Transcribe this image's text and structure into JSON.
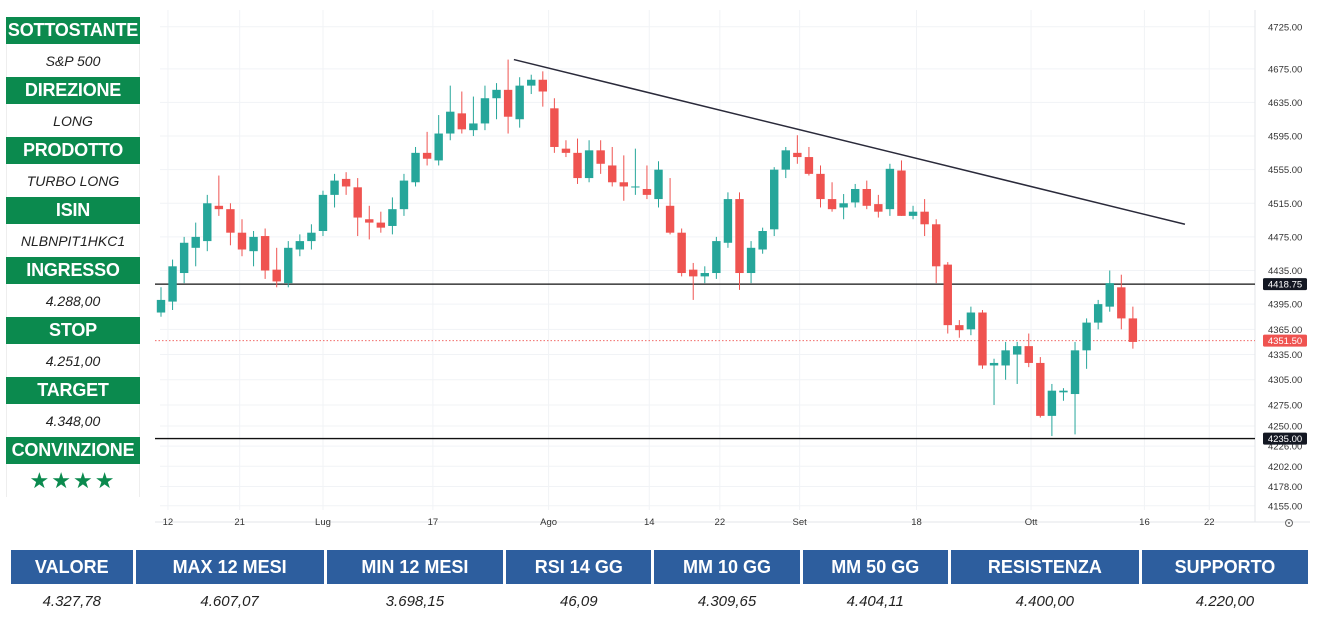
{
  "sidebar": {
    "rows": [
      {
        "label": "SOTTOSTANTE",
        "value": "S&P 500"
      },
      {
        "label": "DIREZIONE",
        "value": "LONG"
      },
      {
        "label": "PRODOTTO",
        "value": "TURBO LONG"
      },
      {
        "label": "ISIN",
        "value": "NLBNPIT1HKC1"
      },
      {
        "label": "INGRESSO",
        "value": "4.288,00"
      },
      {
        "label": "STOP",
        "value": "4.251,00"
      },
      {
        "label": "TARGET",
        "value": "4.348,00"
      }
    ],
    "conviction_label": "CONVINZIONE",
    "conviction_stars": "★★★★"
  },
  "table": {
    "headers": [
      "VALORE",
      "MAX 12 MESI",
      "MIN 12 MESI",
      "RSI 14 GG",
      "MM 10 GG",
      "MM 50 GG",
      "RESISTENZA",
      "SUPPORTO"
    ],
    "values": [
      "4.327,78",
      "4.607,07",
      "3.698,15",
      "46,09",
      "4.309,65",
      "4.404,11",
      "4.400,00",
      "4.220,00"
    ]
  },
  "colors": {
    "up": "#26a69a",
    "down": "#ef5350",
    "header_green": "#0b8a4e",
    "header_blue": "#2d5e9e"
  },
  "chart_data": {
    "type": "candlestick",
    "y_ticks": [
      "4725.00",
      "4675.00",
      "4635.00",
      "4595.00",
      "4555.00",
      "4515.00",
      "4475.00",
      "4435.00",
      "4395.00",
      "4365.00",
      "4335.00",
      "4305.00",
      "4275.00",
      "4250.00",
      "4226.00",
      "4202.00",
      "4178.00",
      "4155.00"
    ],
    "x_ticks": [
      {
        "label": "12",
        "bar": 0.6
      },
      {
        "label": "21",
        "bar": 6.8
      },
      {
        "label": "Lug",
        "bar": 14
      },
      {
        "label": "17",
        "bar": 23.5
      },
      {
        "label": "Ago",
        "bar": 33.5
      },
      {
        "label": "14",
        "bar": 42.2
      },
      {
        "label": "22",
        "bar": 48.3
      },
      {
        "label": "Set",
        "bar": 55.2
      },
      {
        "label": "18",
        "bar": 65.3
      },
      {
        "label": "Ott",
        "bar": 75.2
      },
      {
        "label": "16",
        "bar": 85
      },
      {
        "label": "22",
        "bar": 90.6
      }
    ],
    "ylim": [
      4150,
      4745
    ],
    "levels": [
      {
        "value": 4418.75,
        "label": "4418.75",
        "style": "black"
      },
      {
        "value": 4351.5,
        "label": "4351.50",
        "style": "red"
      },
      {
        "value": 4235.0,
        "label": "4235.00",
        "style": "black"
      }
    ],
    "trendline": {
      "from": {
        "bar": 30.5,
        "price": 4686
      },
      "to": {
        "bar": 88.5,
        "price": 4490
      }
    },
    "candles": [
      [
        4385,
        4415,
        4380,
        4400
      ],
      [
        4398,
        4448,
        4388,
        4440
      ],
      [
        4432,
        4475,
        4420,
        4468
      ],
      [
        4462,
        4492,
        4440,
        4475
      ],
      [
        4470,
        4525,
        4458,
        4515
      ],
      [
        4512,
        4548,
        4500,
        4508
      ],
      [
        4508,
        4515,
        4465,
        4480
      ],
      [
        4480,
        4496,
        4452,
        4460
      ],
      [
        4458,
        4482,
        4440,
        4475
      ],
      [
        4476,
        4485,
        4425,
        4435
      ],
      [
        4436,
        4462,
        4415,
        4422
      ],
      [
        4420,
        4470,
        4415,
        4462
      ],
      [
        4460,
        4478,
        4452,
        4470
      ],
      [
        4470,
        4490,
        4460,
        4480
      ],
      [
        4482,
        4530,
        4476,
        4525
      ],
      [
        4525,
        4550,
        4510,
        4542
      ],
      [
        4544,
        4552,
        4525,
        4535
      ],
      [
        4534,
        4545,
        4476,
        4498
      ],
      [
        4496,
        4512,
        4472,
        4492
      ],
      [
        4492,
        4505,
        4480,
        4486
      ],
      [
        4488,
        4522,
        4478,
        4508
      ],
      [
        4508,
        4550,
        4500,
        4542
      ],
      [
        4540,
        4582,
        4535,
        4575
      ],
      [
        4575,
        4600,
        4560,
        4568
      ],
      [
        4566,
        4620,
        4560,
        4598
      ],
      [
        4598,
        4655,
        4590,
        4624
      ],
      [
        4622,
        4648,
        4598,
        4603
      ],
      [
        4602,
        4642,
        4595,
        4610
      ],
      [
        4610,
        4655,
        4602,
        4640
      ],
      [
        4640,
        4658,
        4615,
        4650
      ],
      [
        4650,
        4686,
        4598,
        4618
      ],
      [
        4615,
        4665,
        4605,
        4655
      ],
      [
        4655,
        4668,
        4645,
        4662
      ],
      [
        4662,
        4672,
        4630,
        4648
      ],
      [
        4628,
        4640,
        4575,
        4582
      ],
      [
        4580,
        4590,
        4570,
        4575
      ],
      [
        4575,
        4592,
        4538,
        4545
      ],
      [
        4545,
        4590,
        4540,
        4578
      ],
      [
        4578,
        4590,
        4550,
        4562
      ],
      [
        4560,
        4582,
        4535,
        4540
      ],
      [
        4540,
        4572,
        4518,
        4535
      ],
      [
        4535,
        4580,
        4525,
        4535
      ],
      [
        4532,
        4560,
        4520,
        4525
      ],
      [
        4520,
        4565,
        4510,
        4555
      ],
      [
        4512,
        4545,
        4478,
        4480
      ],
      [
        4480,
        4485,
        4428,
        4432
      ],
      [
        4436,
        4444,
        4400,
        4428
      ],
      [
        4428,
        4440,
        4420,
        4432
      ],
      [
        4432,
        4475,
        4425,
        4470
      ],
      [
        4468,
        4528,
        4462,
        4520
      ],
      [
        4520,
        4528,
        4412,
        4432
      ],
      [
        4432,
        4470,
        4420,
        4462
      ],
      [
        4460,
        4486,
        4455,
        4482
      ],
      [
        4484,
        4558,
        4476,
        4555
      ],
      [
        4555,
        4582,
        4545,
        4578
      ],
      [
        4575,
        4596,
        4562,
        4570
      ],
      [
        4570,
        4582,
        4548,
        4550
      ],
      [
        4550,
        4560,
        4510,
        4520
      ],
      [
        4520,
        4540,
        4505,
        4508
      ],
      [
        4510,
        4526,
        4496,
        4515
      ],
      [
        4516,
        4538,
        4510,
        4532
      ],
      [
        4532,
        4542,
        4508,
        4512
      ],
      [
        4514,
        4525,
        4498,
        4505
      ],
      [
        4508,
        4562,
        4500,
        4556
      ],
      [
        4554,
        4566,
        4500,
        4500
      ],
      [
        4500,
        4512,
        4496,
        4505
      ],
      [
        4505,
        4520,
        4476,
        4490
      ],
      [
        4490,
        4496,
        4420,
        4440
      ],
      [
        4442,
        4445,
        4360,
        4370
      ],
      [
        4370,
        4376,
        4355,
        4364
      ],
      [
        4365,
        4392,
        4358,
        4385
      ],
      [
        4385,
        4388,
        4318,
        4322
      ],
      [
        4322,
        4330,
        4275,
        4325
      ],
      [
        4322,
        4350,
        4305,
        4340
      ],
      [
        4335,
        4350,
        4300,
        4345
      ],
      [
        4345,
        4360,
        4320,
        4325
      ],
      [
        4325,
        4332,
        4260,
        4262
      ],
      [
        4262,
        4300,
        4238,
        4292
      ],
      [
        4290,
        4295,
        4280,
        4292
      ],
      [
        4288,
        4350,
        4240,
        4340
      ],
      [
        4340,
        4378,
        4318,
        4373
      ],
      [
        4373,
        4400,
        4365,
        4395
      ],
      [
        4392,
        4435,
        4386,
        4420
      ],
      [
        4415,
        4430,
        4365,
        4378
      ],
      [
        4378,
        4392,
        4342,
        4350
      ]
    ]
  }
}
